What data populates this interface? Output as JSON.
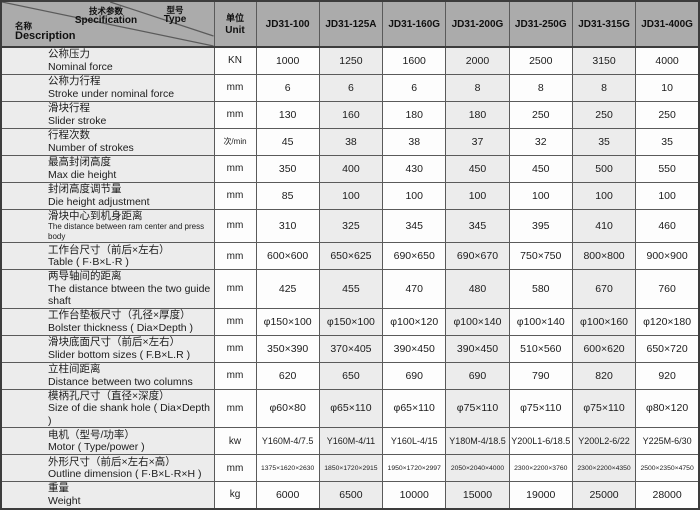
{
  "header": {
    "diagonal": {
      "spec_cn": "技术参数",
      "spec_en": "Specification",
      "type_cn": "型号",
      "type_en": "Type",
      "desc_cn": "名称",
      "desc_en": "Description"
    },
    "unit_cn": "单位",
    "unit_en": "Unit",
    "models": [
      "JD31-100",
      "JD31-125A",
      "JD31-160G",
      "JD31-200G",
      "JD31-250G",
      "JD31-315G",
      "JD31-400G"
    ]
  },
  "rows": [
    {
      "cn": "公称压力",
      "en": "Nominal force",
      "unit": "KN",
      "values": [
        "1000",
        "1250",
        "1600",
        "2000",
        "2500",
        "3150",
        "4000"
      ]
    },
    {
      "cn": "公称力行程",
      "en": "Stroke under nominal force",
      "unit": "mm",
      "values": [
        "6",
        "6",
        "6",
        "8",
        "8",
        "8",
        "10"
      ]
    },
    {
      "cn": "滑块行程",
      "en": "Slider stroke",
      "unit": "mm",
      "values": [
        "130",
        "160",
        "180",
        "180",
        "250",
        "250",
        "250"
      ]
    },
    {
      "cn": "行程次数",
      "en": "Number of strokes",
      "unit": "次/min",
      "unit_small": true,
      "values": [
        "45",
        "38",
        "38",
        "37",
        "32",
        "35",
        "35"
      ]
    },
    {
      "cn": "最高封闭高度",
      "en": "Max die height",
      "unit": "mm",
      "values": [
        "350",
        "400",
        "430",
        "450",
        "450",
        "500",
        "550"
      ]
    },
    {
      "cn": "封闭高度调节量",
      "en": "Die height adjustment",
      "unit": "mm",
      "values": [
        "85",
        "100",
        "100",
        "100",
        "100",
        "100",
        "100"
      ]
    },
    {
      "cn": "滑块中心到机身距离",
      "en": "The distance between ram center and press body",
      "en_small": true,
      "unit": "mm",
      "values": [
        "310",
        "325",
        "345",
        "345",
        "395",
        "410",
        "460"
      ]
    },
    {
      "cn": "工作台尺寸（前后×左右）",
      "en": "Table ( F·B×L·R )",
      "unit": "mm",
      "values": [
        "600×600",
        "650×625",
        "690×650",
        "690×670",
        "750×750",
        "800×800",
        "900×900"
      ]
    },
    {
      "cn": "两导轴间的距离",
      "en": "The distance btween the two guide shaft",
      "unit": "mm",
      "values": [
        "425",
        "455",
        "470",
        "480",
        "580",
        "670",
        "760"
      ]
    },
    {
      "cn": "工作台垫板尺寸（孔径×厚度）",
      "en": "Bolster thickness ( Dia×Depth )",
      "unit": "mm",
      "values": [
        "φ150×100",
        "φ150×100",
        "φ100×120",
        "φ100×140",
        "φ100×140",
        "φ100×160",
        "φ120×180"
      ]
    },
    {
      "cn": "滑块底面尺寸（前后×左右）",
      "en": "Slider bottom sizes ( F.B×L.R )",
      "unit": "mm",
      "values": [
        "350×390",
        "370×405",
        "390×450",
        "390×450",
        "510×560",
        "600×620",
        "650×720"
      ]
    },
    {
      "cn": "立柱间距离",
      "en": "Distance between two columns",
      "unit": "mm",
      "values": [
        "620",
        "650",
        "690",
        "690",
        "790",
        "820",
        "920"
      ]
    },
    {
      "cn": "模柄孔尺寸（直径×深度）",
      "en": "Size of die shank hole ( Dia×Depth )",
      "unit": "mm",
      "values": [
        "φ60×80",
        "φ65×110",
        "φ65×110",
        "φ75×110",
        "φ75×110",
        "φ75×110",
        "φ80×120"
      ]
    },
    {
      "cn": "电机（型号/功率）",
      "en": "Motor ( Type/power )",
      "unit": "kw",
      "val_size": "m",
      "values": [
        "Y160M-4/7.5",
        "Y160M-4/11",
        "Y160L-4/15",
        "Y180M-4/18.5",
        "Y200L1-6/18.5",
        "Y200L2-6/22",
        "Y225M-6/30"
      ]
    },
    {
      "cn": "外形尺寸（前后×左右×高）",
      "en": "Outline dimension ( F·B×L·R×H )",
      "unit": "mm",
      "val_size": "s",
      "values": [
        "1375×1620×2630",
        "1850×1720×2915",
        "1950×1720×2997",
        "2050×2040×4000",
        "2300×2200×3760",
        "2300×2200×4350",
        "2500×2350×4750"
      ]
    },
    {
      "cn": "重量",
      "en": "Weight",
      "unit": "kg",
      "values": [
        "6000",
        "6500",
        "10000",
        "15000",
        "19000",
        "25000",
        "28000"
      ]
    }
  ],
  "colors": {
    "header_bg": "#ababab",
    "stripe_bg": "#ececec",
    "cell_bg": "#fdfdfd",
    "grid_line": "#5a5a5a",
    "outer_border": "#3c3c3c",
    "text": "#1c1c1c"
  }
}
